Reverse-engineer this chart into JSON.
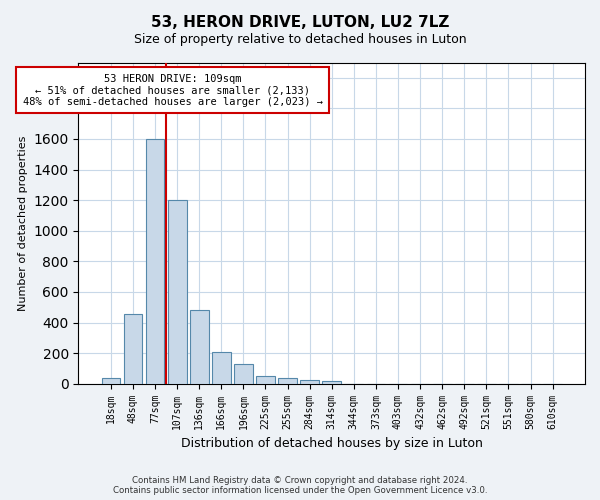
{
  "title": "53, HERON DRIVE, LUTON, LU2 7LZ",
  "subtitle": "Size of property relative to detached houses in Luton",
  "xlabel": "Distribution of detached houses by size in Luton",
  "ylabel": "Number of detached properties",
  "categories": [
    "18sqm",
    "48sqm",
    "77sqm",
    "107sqm",
    "136sqm",
    "166sqm",
    "196sqm",
    "225sqm",
    "255sqm",
    "284sqm",
    "314sqm",
    "344sqm",
    "373sqm",
    "403sqm",
    "432sqm",
    "462sqm",
    "492sqm",
    "521sqm",
    "551sqm",
    "580sqm",
    "610sqm"
  ],
  "values": [
    35,
    455,
    1600,
    1200,
    480,
    210,
    130,
    50,
    40,
    25,
    15,
    0,
    0,
    0,
    0,
    0,
    0,
    0,
    0,
    0,
    0
  ],
  "bar_color": "#c8d8e8",
  "bar_edge_color": "#5588aa",
  "marker_bar_index": 3,
  "marker_color": "#cc0000",
  "annotation_text": "53 HERON DRIVE: 109sqm\n← 51% of detached houses are smaller (2,133)\n48% of semi-detached houses are larger (2,023) →",
  "annotation_box_color": "#ffffff",
  "annotation_border_color": "#cc0000",
  "footer_line1": "Contains HM Land Registry data © Crown copyright and database right 2024.",
  "footer_line2": "Contains public sector information licensed under the Open Government Licence v3.0.",
  "ylim_max": 2100,
  "bg_color": "#eef2f6",
  "plot_bg": "#ffffff",
  "grid_color": "#c8d8e8"
}
